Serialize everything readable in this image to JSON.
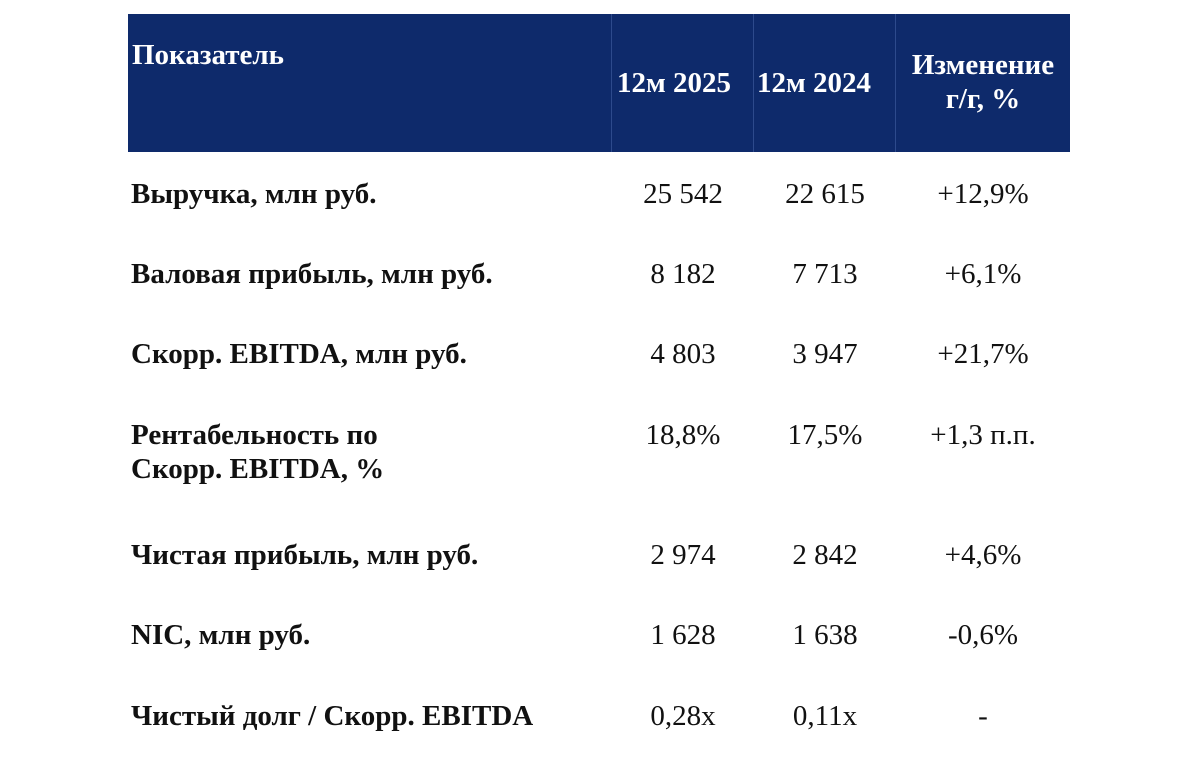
{
  "table": {
    "headers": {
      "indicator": "Показатель",
      "col_2025": "12м 2025",
      "col_2024": "12м 2024",
      "change_line1": "Изменение",
      "change_line2": "г/г, %"
    },
    "rows": [
      {
        "label": "Выручка, млн руб.",
        "label2": "",
        "v2025": "25 542",
        "v2024": "22 615",
        "change": "+12,9%"
      },
      {
        "label": "Валовая прибыль, млн руб.",
        "label2": "",
        "v2025": "8 182",
        "v2024": "7 713",
        "change": "+6,1%"
      },
      {
        "label": "Скорр. EBITDA, млн руб.",
        "label2": "",
        "v2025": "4 803",
        "v2024": "3 947",
        "change": "+21,7%"
      },
      {
        "label": "Рентабельность по",
        "label2": "Скорр. EBITDA, %",
        "v2025": "18,8%",
        "v2024": "17,5%",
        "change": "+1,3 п.п."
      },
      {
        "label": "Чистая прибыль, млн руб.",
        "label2": "",
        "v2025": "2 974",
        "v2024": "2 842",
        "change": "+4,6%"
      },
      {
        "label": "NIC, млн руб.",
        "label2": "",
        "v2025": "1 628",
        "v2024": "1 638",
        "change": "-0,6%"
      },
      {
        "label": "Чистый долг / Скорр. EBITDA",
        "label2": "",
        "v2025": "0,28x",
        "v2024": "0,11x",
        "change": "-"
      }
    ]
  },
  "colors": {
    "header_bg": "#0e2a6b",
    "header_text": "#ffffff",
    "body_text": "#111111"
  }
}
